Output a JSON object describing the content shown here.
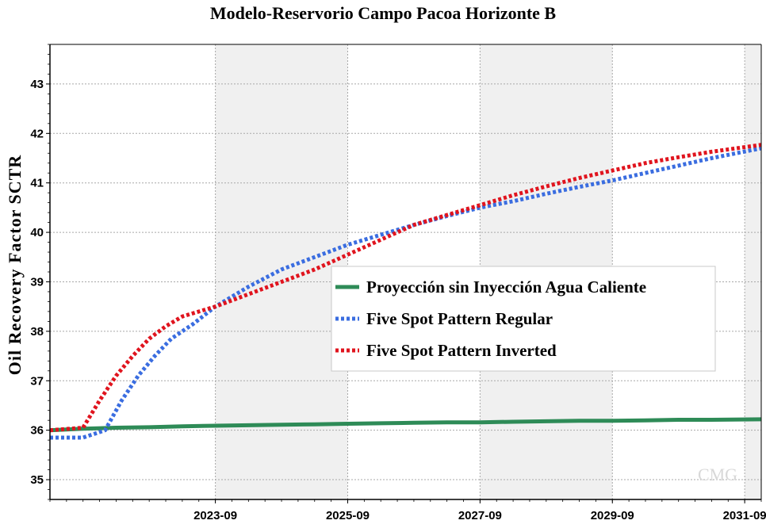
{
  "chart_data": {
    "type": "line",
    "title": "Modelo-Reservorio Campo Pacoa Horizonte B",
    "ylabel": "Oil Recovery Factor SCTR",
    "xlabel": "",
    "x_axis": "date",
    "xlim": [
      "2021-03",
      "2031-12"
    ],
    "ylim": [
      34.6,
      43.8
    ],
    "x_ticks": [
      "2023-09",
      "2025-09",
      "2027-09",
      "2029-09",
      "2031-09"
    ],
    "y_ticks": [
      35,
      36,
      37,
      38,
      39,
      40,
      41,
      42,
      43
    ],
    "grid": true,
    "shaded_bands": true,
    "legend_position": "center-right",
    "series": [
      {
        "name": "Proyección sin Inyección Agua Caliente",
        "color": "#2e8b57",
        "style": "solid",
        "x": [
          "2021-03",
          "2021-09",
          "2022-03",
          "2022-09",
          "2023-03",
          "2023-09",
          "2024-03",
          "2024-09",
          "2025-03",
          "2025-09",
          "2026-03",
          "2026-09",
          "2027-03",
          "2027-09",
          "2028-03",
          "2028-09",
          "2029-03",
          "2029-09",
          "2030-03",
          "2030-09",
          "2031-03",
          "2031-12"
        ],
        "values": [
          36.0,
          36.03,
          36.05,
          36.06,
          36.08,
          36.09,
          36.1,
          36.11,
          36.12,
          36.13,
          36.14,
          36.15,
          36.16,
          36.16,
          36.17,
          36.18,
          36.19,
          36.19,
          36.2,
          36.21,
          36.21,
          36.22
        ]
      },
      {
        "name": "Five Spot Pattern Regular",
        "color": "#3a6de0",
        "style": "dotted",
        "x": [
          "2021-03",
          "2021-09",
          "2022-01",
          "2022-04",
          "2022-07",
          "2022-10",
          "2023-01",
          "2023-05",
          "2023-09",
          "2024-03",
          "2024-09",
          "2025-03",
          "2025-09",
          "2026-03",
          "2026-09",
          "2027-03",
          "2027-09",
          "2028-03",
          "2028-09",
          "2029-03",
          "2029-09",
          "2030-03",
          "2030-09",
          "2031-03",
          "2031-12"
        ],
        "values": [
          35.85,
          35.85,
          36.0,
          36.6,
          37.1,
          37.5,
          37.85,
          38.15,
          38.5,
          38.9,
          39.25,
          39.5,
          39.75,
          39.95,
          40.15,
          40.33,
          40.5,
          40.63,
          40.78,
          40.92,
          41.05,
          41.2,
          41.35,
          41.5,
          41.7
        ]
      },
      {
        "name": "Five Spot Pattern Inverted",
        "color": "#e0141e",
        "style": "dotted",
        "x": [
          "2021-03",
          "2021-09",
          "2021-12",
          "2022-03",
          "2022-06",
          "2022-09",
          "2022-12",
          "2023-03",
          "2023-09",
          "2024-03",
          "2024-09",
          "2025-03",
          "2025-09",
          "2026-03",
          "2026-09",
          "2027-03",
          "2027-09",
          "2028-03",
          "2028-09",
          "2029-03",
          "2029-09",
          "2030-03",
          "2030-09",
          "2031-03",
          "2031-12"
        ],
        "values": [
          36.0,
          36.05,
          36.6,
          37.1,
          37.5,
          37.85,
          38.1,
          38.3,
          38.5,
          38.75,
          39.0,
          39.25,
          39.55,
          39.85,
          40.15,
          40.35,
          40.55,
          40.75,
          40.93,
          41.1,
          41.25,
          41.4,
          41.52,
          41.63,
          41.77
        ]
      }
    ]
  },
  "watermark": "CMG"
}
